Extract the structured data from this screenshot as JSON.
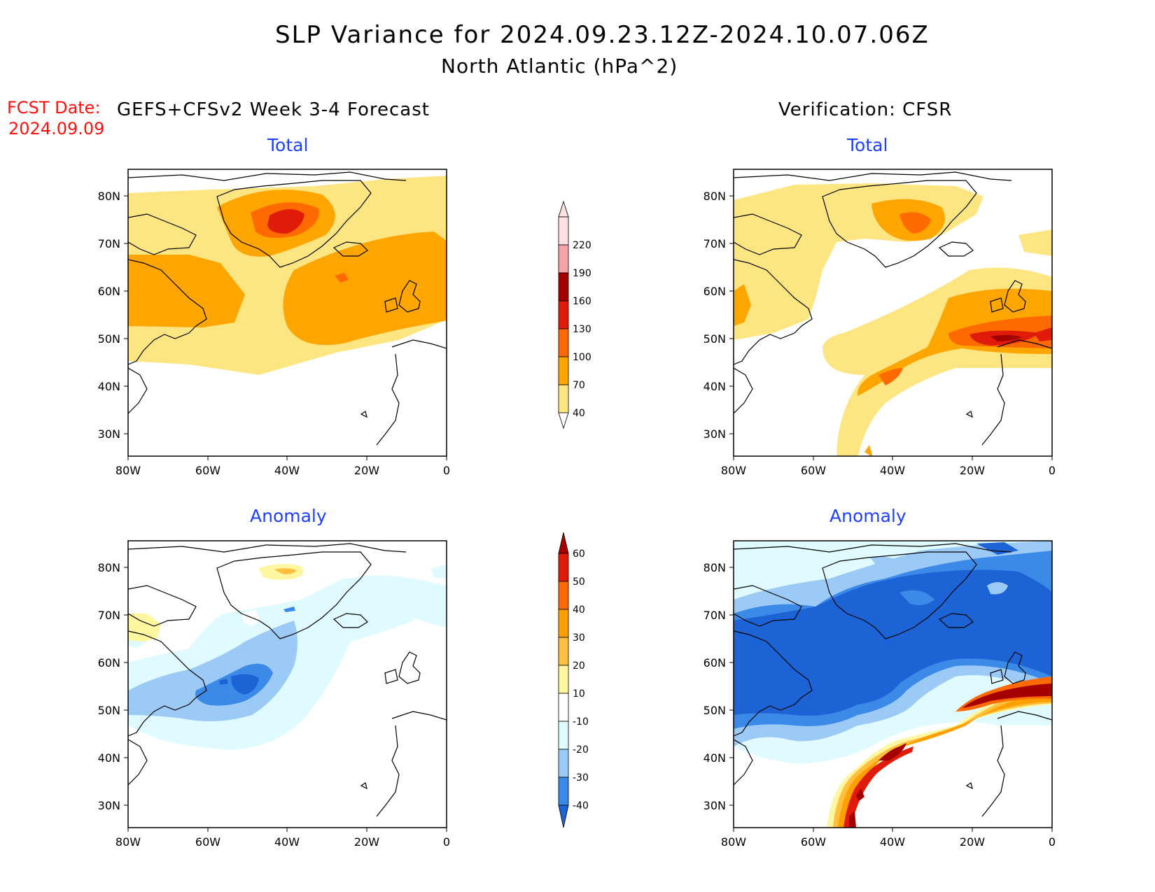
{
  "title": "SLP Variance for 2024.09.23.12Z-2024.10.07.06Z",
  "subtitle": "North Atlantic (hPa^2)",
  "fcst_label": "FCST Date:",
  "fcst_date": "2024.09.09",
  "left_heading": "GEFS+CFSv2 Week 3-4 Forecast",
  "right_heading": "Verification: CFSR",
  "panels": {
    "top_left": "Total",
    "top_right": "Total",
    "bottom_left": "Anomaly",
    "bottom_right": "Anomaly"
  },
  "axes": {
    "lon_ticks": [
      "80W",
      "60W",
      "40W",
      "20W",
      "0"
    ],
    "lat_ticks": [
      "80N",
      "70N",
      "60N",
      "50N",
      "40N",
      "30N"
    ]
  },
  "colorbars": {
    "total": {
      "levels": [
        "40",
        "70",
        "100",
        "130",
        "160",
        "190",
        "220"
      ],
      "colors": [
        "#fde682",
        "#ffa500",
        "#ff6a00",
        "#e01b0a",
        "#a50000",
        "#f4a3a8",
        "#fde0e0"
      ]
    },
    "anomaly": {
      "levels": [
        "-40",
        "-30",
        "-20",
        "-10",
        "10",
        "20",
        "30",
        "40",
        "50",
        "60"
      ],
      "colors": [
        "#1c63d6",
        "#3c8ae8",
        "#9ccaf6",
        "#e0fbff",
        "#ffffff",
        "#fff6a0",
        "#ffc040",
        "#ffa000",
        "#ff6a00",
        "#e01b0a",
        "#a50000"
      ]
    }
  },
  "colors": {
    "title_text": "#000000",
    "fcst_text": "#ff1010",
    "panel_label": "#2040ff"
  }
}
